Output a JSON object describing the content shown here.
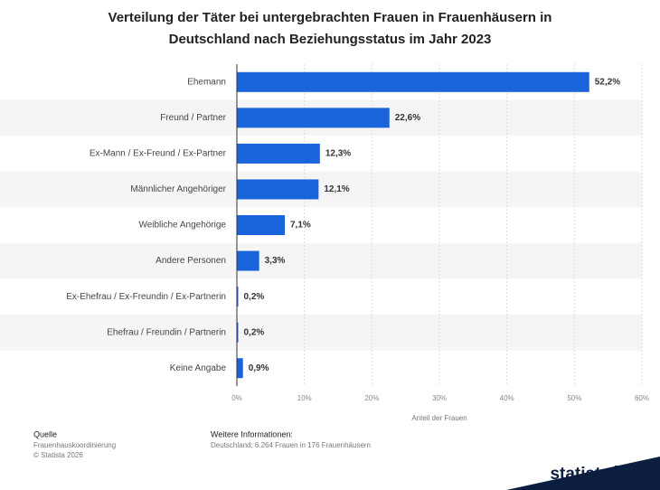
{
  "chart_data": {
    "type": "hbar",
    "title": [
      "Verteilung der Täter bei untergebrachten Frauen in Frauenhäusern in",
      "Deutschland nach Beziehungsstatus im Jahr 2023"
    ],
    "categories": [
      "Ehemann",
      "Freund / Partner",
      "Ex-Mann / Ex-Freund / Ex-Partner",
      "Männlicher Angehöriger",
      "Weibliche Angehörige",
      "Andere Personen",
      "Ex-Ehefrau / Ex-Freundin / Ex-Partnerin",
      "Ehefrau / Freundin / Partnerin",
      "Keine Angabe"
    ],
    "values": [
      52.2,
      22.6,
      12.3,
      12.1,
      7.1,
      3.3,
      0.2,
      0.2,
      0.9
    ],
    "value_labels": [
      "52,2%",
      "22,6%",
      "12,3%",
      "12,1%",
      "7,1%",
      "3,3%",
      "0,2%",
      "0,2%",
      "0,9%"
    ],
    "color": "#1a64db",
    "xlim": [
      0,
      60
    ],
    "xticks": [
      {
        "value": 0,
        "label": "0%"
      },
      {
        "value": 10,
        "label": "10%"
      },
      {
        "value": 20,
        "label": "20%"
      },
      {
        "value": 30,
        "label": "30%"
      },
      {
        "value": 40,
        "label": "40%"
      },
      {
        "value": 50,
        "label": "50%"
      },
      {
        "value": 60,
        "label": "60%"
      }
    ],
    "xlabel": "Anteil der Frauen",
    "grid": true
  },
  "footer": {
    "source_heading": "Quelle",
    "source": "Frauenhauskoordinierung",
    "copyright": "© Statista 2026",
    "info_heading": "Weitere Informationen:",
    "info": "Deutschland; 6.264 Frauen in 176 Frauenhäusern",
    "logo": "statista"
  }
}
